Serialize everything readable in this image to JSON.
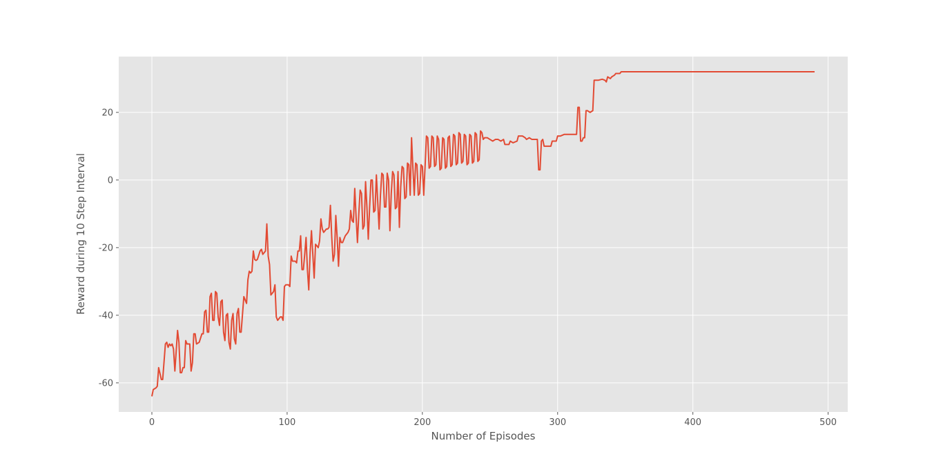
{
  "chart_data": {
    "type": "line",
    "xlabel": "Number of Episodes",
    "ylabel": "Reward during 10 Step Interval",
    "xlim": [
      -24.5,
      514.5
    ],
    "ylim": [
      -68.6,
      36.5
    ],
    "xticks": [
      0,
      100,
      200,
      300,
      400,
      500
    ],
    "yticks": [
      -60,
      -40,
      -20,
      0,
      20
    ],
    "grid": true,
    "background": "#e5e5e5",
    "series": [
      {
        "color": "#e24a33",
        "x": [
          0,
          1,
          3,
          4,
          5,
          7,
          8,
          10,
          11,
          12,
          13,
          14,
          15,
          16,
          17,
          19,
          20,
          21,
          22,
          23,
          24,
          25,
          26,
          28,
          29,
          30,
          31,
          32,
          33,
          35,
          37,
          38,
          39,
          40,
          41,
          42,
          43,
          44,
          45,
          46,
          47,
          48,
          49,
          50,
          51,
          52,
          53,
          54,
          55,
          56,
          57,
          58,
          59,
          60,
          61,
          62,
          63,
          64,
          65,
          66,
          68,
          69,
          70,
          71,
          72,
          73,
          74,
          75,
          76,
          77,
          78,
          80,
          81,
          82,
          83,
          84,
          85,
          86,
          87,
          88,
          89,
          90,
          91,
          92,
          93,
          94,
          95,
          96,
          97,
          98,
          99,
          101,
          102,
          103,
          104,
          106,
          107,
          108,
          109,
          110,
          111,
          112,
          113,
          114,
          115,
          116,
          117,
          118,
          120,
          121,
          122,
          123,
          124,
          125,
          126,
          127,
          128,
          129,
          130,
          131,
          132,
          133,
          134,
          135,
          136,
          137,
          138,
          139,
          140,
          141,
          142,
          143,
          145,
          146,
          147,
          148,
          149,
          150,
          151,
          152,
          153,
          154,
          155,
          156,
          157,
          158,
          159,
          160,
          161,
          162,
          163,
          164,
          165,
          166,
          167,
          168,
          169,
          170,
          171,
          172,
          173,
          174,
          175,
          176,
          177,
          178,
          179,
          180,
          181,
          182,
          183,
          184,
          185,
          186,
          187,
          188,
          189,
          190,
          191,
          192,
          193,
          194,
          195,
          196,
          197,
          198,
          199,
          200,
          201,
          202,
          203,
          204,
          205,
          206,
          207,
          208,
          209,
          210,
          211,
          212,
          213,
          214,
          215,
          216,
          217,
          218,
          219,
          220,
          221,
          222,
          223,
          224,
          225,
          226,
          227,
          228,
          229,
          230,
          231,
          232,
          233,
          234,
          235,
          236,
          237,
          238,
          239,
          240,
          241,
          242,
          243,
          244,
          245,
          246,
          248,
          250,
          252,
          254,
          256,
          258,
          260,
          261,
          264,
          265,
          267,
          270,
          271,
          274,
          276,
          277,
          279,
          281,
          285,
          286,
          287,
          288,
          289,
          290,
          293,
          295,
          296,
          299,
          300,
          302,
          305,
          310,
          312,
          314,
          315,
          316,
          317,
          318,
          319,
          320,
          321,
          322,
          324,
          326,
          327,
          330,
          333,
          335,
          336,
          337,
          339,
          340,
          342,
          343,
          344,
          346,
          347,
          350,
          490
        ],
        "values": [
          -64,
          -62,
          -61.5,
          -61,
          -55.5,
          -59,
          -59,
          -48.5,
          -48,
          -49.5,
          -48.5,
          -49,
          -48.5,
          -50,
          -56.5,
          -44.5,
          -48,
          -57,
          -57,
          -55.5,
          -55.5,
          -47.5,
          -48.5,
          -48.5,
          -56.5,
          -54,
          -45.5,
          -45.5,
          -48.5,
          -48,
          -45.5,
          -45.5,
          -39,
          -38.5,
          -45,
          -45,
          -34.5,
          -33.5,
          -41.5,
          -41.5,
          -33,
          -33.5,
          -40.5,
          -43,
          -36,
          -35.5,
          -45,
          -47.5,
          -40,
          -39.5,
          -48,
          -50,
          -41.5,
          -39.5,
          -47,
          -48.5,
          -39.5,
          -38,
          -45,
          -45,
          -34.5,
          -35.5,
          -36.5,
          -29.5,
          -27,
          -27.5,
          -27,
          -21,
          -23.5,
          -23.8,
          -23.5,
          -21,
          -20.5,
          -22,
          -21.5,
          -21,
          -13,
          -22.5,
          -25,
          -34,
          -33.5,
          -33,
          -31,
          -40.5,
          -41.5,
          -41,
          -40.5,
          -40.5,
          -41.5,
          -31.5,
          -31,
          -31,
          -31.5,
          -22.5,
          -24,
          -24,
          -24.5,
          -21,
          -21,
          -16.5,
          -26.5,
          -26.5,
          -22,
          -17,
          -26.5,
          -32.5,
          -21.5,
          -15,
          -29,
          -19,
          -19.5,
          -20,
          -18,
          -11.5,
          -14.5,
          -15.5,
          -15,
          -14.5,
          -14.5,
          -14,
          -7.5,
          -17,
          -24,
          -22,
          -10.5,
          -17,
          -25.5,
          -17,
          -18.5,
          -18.5,
          -17.5,
          -16.5,
          -15.5,
          -14.5,
          -9,
          -12,
          -12.5,
          -2.5,
          -11,
          -18.5,
          -10,
          -3,
          -4,
          -14.5,
          -13.5,
          -0.5,
          -8,
          -17.5,
          -8,
          0,
          0,
          -9.5,
          -9,
          1.5,
          -6.5,
          -14.5,
          -4.5,
          2,
          1.5,
          -8,
          -8,
          2,
          0,
          -15,
          -4,
          2.5,
          1.5,
          -8.5,
          -8,
          2.5,
          -14,
          -2,
          4,
          3.5,
          -5.5,
          -5,
          5,
          4.5,
          -4.5,
          12.5,
          3.5,
          -4.5,
          5,
          4.5,
          -4.5,
          -4,
          4.5,
          4,
          -4.5,
          4,
          13,
          12.5,
          3.5,
          4,
          13,
          12.5,
          4,
          4.5,
          13,
          12,
          3,
          3.5,
          12.5,
          12,
          3.5,
          4,
          12.5,
          13,
          4,
          4.5,
          13.5,
          13,
          4.5,
          5,
          14,
          13.5,
          5,
          5.5,
          13.5,
          13,
          4.5,
          5,
          13.5,
          13,
          5,
          5.5,
          14,
          13.5,
          5.5,
          6,
          14.5,
          14,
          12,
          12.5,
          12.5,
          12,
          11.5,
          12,
          12,
          11.5,
          12,
          10.5,
          10.5,
          11.5,
          11,
          11.5,
          13,
          13,
          12.5,
          12,
          12.5,
          12,
          12,
          3,
          3,
          11.5,
          12,
          10,
          10,
          10,
          11.5,
          11.5,
          13,
          13,
          13.5,
          13.5,
          13.5,
          13.5,
          21.5,
          21.5,
          11.5,
          11.5,
          12.5,
          12.5,
          20.5,
          20.5,
          20,
          20.5,
          29.5,
          29.5,
          29.8,
          29.5,
          29,
          30.5,
          30,
          30.5,
          31,
          31.5,
          31.5,
          31.5,
          32,
          32,
          32
        ]
      }
    ]
  }
}
